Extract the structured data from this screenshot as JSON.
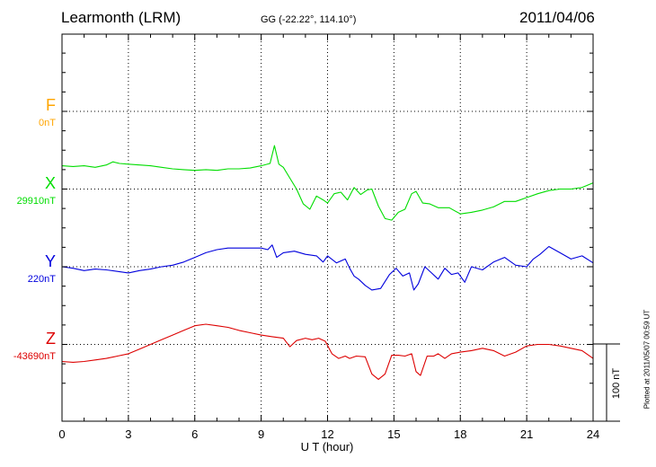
{
  "header": {
    "station": "Learmonth (LRM)",
    "coords": "GG (-22.22°, 114.10°)",
    "date": "2011/04/06"
  },
  "footer": {
    "plotted": "Plotted at 2011/05/07 00:59 UT",
    "scale": "100 nT"
  },
  "chart_data": {
    "type": "line",
    "xlabel": "U T (hour)",
    "xlim": [
      0,
      24
    ],
    "x_ticks": [
      "0",
      "3",
      "6",
      "9",
      "12",
      "15",
      "18",
      "21",
      "24"
    ],
    "scale_bar_nT": 100,
    "series": [
      {
        "name": "F",
        "baseline": "0nT",
        "color": "#ffa500",
        "offset": 0,
        "x": [],
        "y": []
      },
      {
        "name": "X",
        "baseline": "29910nT",
        "color": "#00dd00",
        "offset": 1,
        "x": [
          0,
          0.5,
          1,
          1.5,
          2,
          2.3,
          2.6,
          3,
          3.5,
          4,
          4.5,
          5,
          5.5,
          6,
          6.5,
          7,
          7.5,
          8,
          8.5,
          9,
          9.4,
          9.6,
          9.8,
          10,
          10.3,
          10.6,
          10.9,
          11.2,
          11.5,
          11.8,
          12,
          12.3,
          12.6,
          12.9,
          13.2,
          13.5,
          13.8,
          14,
          14.3,
          14.6,
          14.9,
          15.2,
          15.5,
          15.8,
          16,
          16.3,
          16.6,
          17,
          17.5,
          18,
          18.5,
          19,
          19.5,
          20,
          20.5,
          21,
          21.5,
          22,
          22.5,
          23,
          23.5,
          24
        ],
        "y": [
          30,
          29,
          30,
          28,
          31,
          35,
          33,
          32,
          31,
          30,
          28,
          26,
          25,
          24,
          25,
          24,
          26,
          26,
          27,
          30,
          33,
          56,
          32,
          28,
          14,
          0,
          -19,
          -26,
          -9,
          -14,
          -18,
          -6,
          -4,
          -14,
          2,
          -7,
          -1,
          0,
          -22,
          -38,
          -40,
          -30,
          -26,
          -6,
          -3,
          -18,
          -19,
          -24,
          -24,
          -32,
          -30,
          -27,
          -23,
          -16,
          -16,
          -11,
          -6,
          -2,
          0,
          0,
          2,
          8
        ]
      },
      {
        "name": "Y",
        "baseline": "220nT",
        "color": "#0000dd",
        "offset": 2,
        "x": [
          0,
          0.5,
          1,
          1.5,
          2,
          2.5,
          3,
          3.5,
          4,
          4.5,
          5,
          5.5,
          6,
          6.5,
          7,
          7.5,
          8,
          8.5,
          9,
          9.3,
          9.5,
          9.7,
          10,
          10.5,
          11,
          11.5,
          11.8,
          12,
          12.4,
          12.8,
          13,
          13.2,
          13.4,
          13.7,
          14,
          14.4,
          14.8,
          15.1,
          15.4,
          15.7,
          15.9,
          16.1,
          16.4,
          16.7,
          17,
          17.3,
          17.6,
          17.9,
          18.2,
          18.5,
          19,
          19.5,
          20,
          20.5,
          21,
          21.3,
          21.6,
          22,
          22.5,
          23,
          23.5,
          24
        ],
        "y": [
          0,
          -2,
          -5,
          -3,
          -4,
          -6,
          -8,
          -5,
          -3,
          0,
          2,
          6,
          12,
          18,
          22,
          24,
          24,
          24,
          24,
          22,
          28,
          12,
          18,
          20,
          16,
          14,
          6,
          14,
          5,
          10,
          -2,
          -12,
          -16,
          -24,
          -30,
          -28,
          -10,
          -2,
          -12,
          -8,
          -30,
          -22,
          0,
          -8,
          -16,
          -2,
          -10,
          -8,
          -20,
          0,
          -4,
          6,
          12,
          2,
          0,
          10,
          16,
          26,
          18,
          10,
          14,
          5
        ]
      },
      {
        "name": "Z",
        "baseline": "-43690nT",
        "color": "#dd0000",
        "offset": 3,
        "x": [
          0,
          0.5,
          1,
          1.5,
          2,
          2.5,
          3,
          3.5,
          4,
          4.5,
          5,
          5.5,
          6,
          6.5,
          7,
          7.5,
          8,
          8.5,
          9,
          9.5,
          10,
          10.3,
          10.6,
          11,
          11.3,
          11.6,
          11.9,
          12.2,
          12.5,
          12.8,
          13,
          13.3,
          13.7,
          14,
          14.3,
          14.6,
          14.9,
          15.2,
          15.5,
          15.8,
          16,
          16.2,
          16.5,
          16.8,
          17,
          17.3,
          17.6,
          18,
          18.5,
          19,
          19.5,
          20,
          20.5,
          21,
          21.5,
          22,
          22.5,
          23,
          23.5,
          24
        ],
        "y": [
          -22,
          -23,
          -22,
          -20,
          -18,
          -15,
          -12,
          -6,
          0,
          6,
          12,
          18,
          24,
          26,
          24,
          22,
          18,
          15,
          12,
          10,
          8,
          -3,
          5,
          8,
          6,
          8,
          4,
          -12,
          -18,
          -15,
          -18,
          -15,
          -16,
          -38,
          -45,
          -38,
          -14,
          -14,
          -15,
          -12,
          -35,
          -40,
          -15,
          -15,
          -12,
          -18,
          -12,
          -10,
          -8,
          -5,
          -8,
          -15,
          -10,
          -2,
          0,
          0,
          -2,
          -5,
          -8,
          -18
        ]
      }
    ]
  }
}
